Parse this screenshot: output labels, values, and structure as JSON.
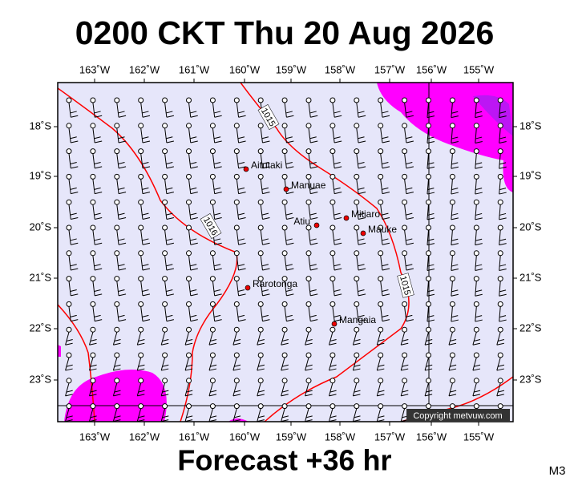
{
  "header": {
    "title": "0200 CKT Thu 20 Aug 2026"
  },
  "footer": {
    "forecast": "Forecast +36 hr",
    "model": "M3"
  },
  "map": {
    "lon_labels": [
      "163˚W",
      "162˚W",
      "161˚W",
      "160˚W",
      "159˚W",
      "158˚W",
      "157˚W",
      "156˚W",
      "155˚W"
    ],
    "lat_labels": [
      "18˚S",
      "19˚S",
      "20˚S",
      "21˚S",
      "22˚S",
      "23˚S"
    ],
    "isobar_labels": [
      "1015",
      "1016",
      "1015"
    ],
    "places": [
      "Aitutaki",
      "Manuae",
      "Atiu",
      "Mitiaro",
      "Mauke",
      "Rarotonga",
      "Mangaia"
    ],
    "copyright": "Copyright metvuw.com"
  }
}
